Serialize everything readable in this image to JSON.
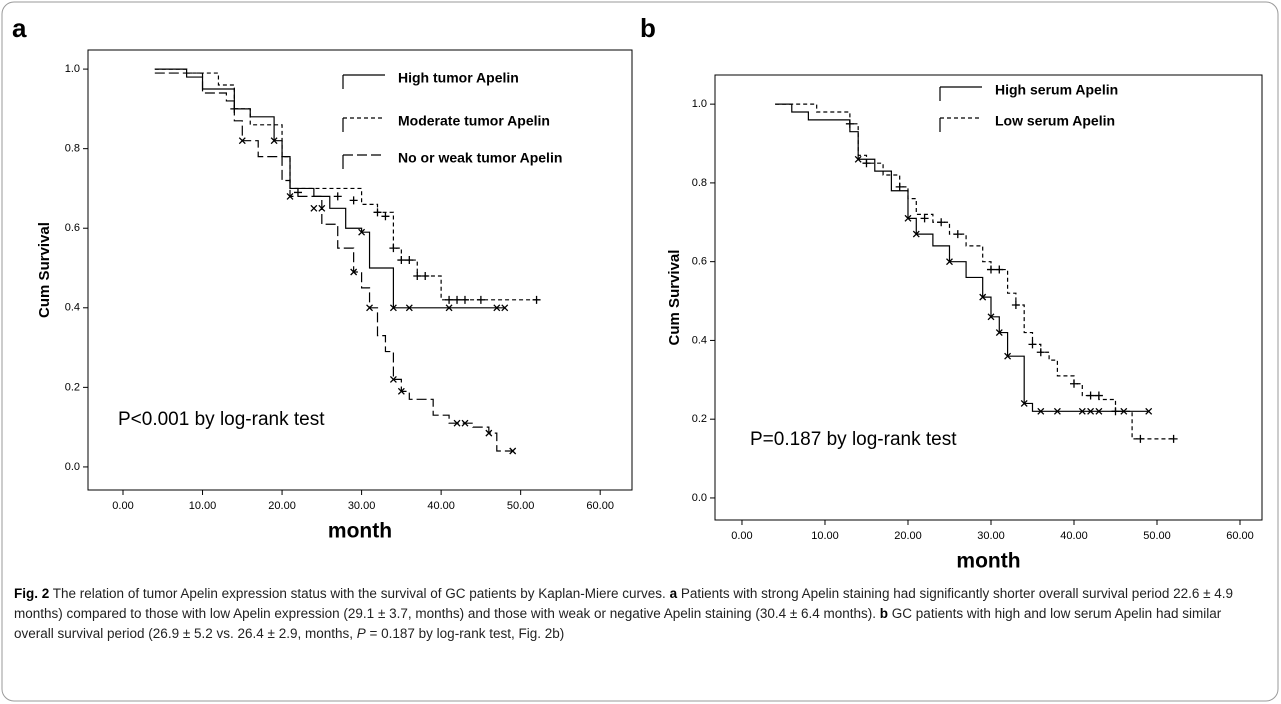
{
  "chart_data": [
    {
      "type": "step",
      "panel_label": "a",
      "ylabel": "Cum Survival",
      "xlabel": "month",
      "annotation": "P<0.001 by log-rank test",
      "xlim": [
        -4.4,
        64
      ],
      "ylim": [
        -0.058,
        1.048
      ],
      "xticks": [
        {
          "value": 0,
          "label": "0.00"
        },
        {
          "value": 10,
          "label": "10.00"
        },
        {
          "value": 20,
          "label": "20.00"
        },
        {
          "value": 30,
          "label": "30.00"
        },
        {
          "value": 40,
          "label": "40.00"
        },
        {
          "value": 50,
          "label": "50.00"
        },
        {
          "value": 60,
          "label": "60.00"
        }
      ],
      "yticks": [
        {
          "value": 0,
          "label": "0.0"
        },
        {
          "value": 0.2,
          "label": "0.2"
        },
        {
          "value": 0.4,
          "label": "0.4"
        },
        {
          "value": 0.6,
          "label": "0.6"
        },
        {
          "value": 0.8,
          "label": "0.8"
        },
        {
          "value": 1,
          "label": "1.0"
        }
      ],
      "series": [
        {
          "name": "High tumor Apelin",
          "color": "#000000",
          "dash": "solid",
          "marker": "x",
          "x": [
            4,
            8,
            10,
            14,
            16,
            19,
            20,
            21,
            24,
            26,
            28,
            30,
            31,
            34,
            48
          ],
          "values": [
            1.0,
            0.98,
            0.95,
            0.9,
            0.88,
            0.82,
            0.78,
            0.7,
            0.68,
            0.65,
            0.6,
            0.59,
            0.5,
            0.4,
            0.4
          ],
          "censor_x": [
            19,
            25,
            30,
            34,
            36,
            41,
            47,
            48
          ],
          "censor_values": [
            0.82,
            0.65,
            0.59,
            0.4,
            0.4,
            0.4,
            0.4,
            0.4
          ]
        },
        {
          "name": "Moderate  tumor Apelin",
          "color": "#000000",
          "dash": "short",
          "marker": "+",
          "x": [
            4,
            8,
            12,
            14,
            16,
            20,
            21,
            30,
            32,
            34,
            35,
            37,
            40,
            52
          ],
          "values": [
            1.0,
            0.99,
            0.96,
            0.9,
            0.86,
            0.78,
            0.7,
            0.66,
            0.64,
            0.55,
            0.52,
            0.48,
            0.42,
            0.42
          ],
          "censor_x": [
            14,
            22,
            27,
            29,
            32,
            33,
            34,
            35,
            36,
            37,
            38,
            41,
            42,
            43,
            45,
            52
          ],
          "censor_values": [
            0.9,
            0.69,
            0.68,
            0.67,
            0.64,
            0.63,
            0.55,
            0.52,
            0.52,
            0.48,
            0.48,
            0.42,
            0.42,
            0.42,
            0.42,
            0.42
          ]
        },
        {
          "name": "No or weak tumor Apelin",
          "color": "#000000",
          "dash": "long",
          "marker": "x",
          "x": [
            4,
            10,
            13,
            14,
            15,
            17,
            20,
            21,
            25,
            27,
            29,
            30,
            31,
            32,
            33,
            34,
            35,
            36,
            39,
            41,
            44,
            46,
            47,
            49
          ],
          "values": [
            0.99,
            0.94,
            0.92,
            0.87,
            0.82,
            0.78,
            0.72,
            0.68,
            0.61,
            0.55,
            0.49,
            0.45,
            0.4,
            0.33,
            0.29,
            0.22,
            0.19,
            0.17,
            0.13,
            0.11,
            0.1,
            0.085,
            0.04,
            0.04
          ],
          "censor_x": [
            15,
            21,
            24,
            29,
            31,
            34,
            35,
            42,
            43,
            46,
            49
          ],
          "censor_values": [
            0.82,
            0.68,
            0.65,
            0.49,
            0.4,
            0.22,
            0.19,
            0.11,
            0.11,
            0.085,
            0.04
          ]
        }
      ]
    },
    {
      "type": "step",
      "panel_label": "b",
      "ylabel": "Cum Survival",
      "xlabel": "month",
      "annotation": "P=0.187 by log-rank test",
      "xlim": [
        -3.25,
        62.65
      ],
      "ylim": [
        -0.056,
        1.074
      ],
      "xticks": [
        {
          "value": 0,
          "label": "0.00"
        },
        {
          "value": 10,
          "label": "10.00"
        },
        {
          "value": 20,
          "label": "20.00"
        },
        {
          "value": 30,
          "label": "30.00"
        },
        {
          "value": 40,
          "label": "40.00"
        },
        {
          "value": 50,
          "label": "50.00"
        },
        {
          "value": 60,
          "label": "60.00"
        }
      ],
      "yticks": [
        {
          "value": 0,
          "label": "0.0"
        },
        {
          "value": 0.2,
          "label": "0.2"
        },
        {
          "value": 0.4,
          "label": "0.4"
        },
        {
          "value": 0.6,
          "label": "0.6"
        },
        {
          "value": 0.8,
          "label": "0.8"
        },
        {
          "value": 1,
          "label": "1.0"
        }
      ],
      "series": [
        {
          "name": "High serum Apelin",
          "color": "#000000",
          "dash": "solid",
          "marker": "x",
          "x": [
            4,
            6,
            8,
            13,
            14,
            16,
            18,
            20,
            21,
            23,
            25,
            27,
            29,
            30,
            31,
            32,
            34,
            35,
            49
          ],
          "values": [
            1.0,
            0.98,
            0.96,
            0.93,
            0.86,
            0.83,
            0.78,
            0.71,
            0.67,
            0.64,
            0.6,
            0.56,
            0.51,
            0.46,
            0.42,
            0.36,
            0.24,
            0.22,
            0.22
          ],
          "censor_x": [
            14,
            20,
            21,
            25,
            29,
            30,
            31,
            32,
            34,
            36,
            38,
            41,
            42,
            43,
            46,
            49
          ],
          "censor_values": [
            0.86,
            0.71,
            0.67,
            0.6,
            0.51,
            0.46,
            0.42,
            0.36,
            0.24,
            0.22,
            0.22,
            0.22,
            0.22,
            0.22,
            0.22,
            0.22
          ]
        },
        {
          "name": "Low serum Apelin",
          "color": "#000000",
          "dash": "short",
          "marker": "+",
          "x": [
            4,
            9,
            13,
            14,
            15,
            17,
            19,
            20,
            21,
            23,
            25,
            27,
            29,
            30,
            32,
            33,
            34,
            35,
            36,
            37,
            38,
            40,
            41,
            43,
            45,
            47,
            52
          ],
          "values": [
            1.0,
            0.98,
            0.95,
            0.87,
            0.85,
            0.82,
            0.79,
            0.76,
            0.72,
            0.7,
            0.67,
            0.64,
            0.6,
            0.58,
            0.52,
            0.49,
            0.42,
            0.39,
            0.37,
            0.35,
            0.31,
            0.29,
            0.26,
            0.25,
            0.22,
            0.15,
            0.15
          ],
          "censor_x": [
            13,
            15,
            19,
            22,
            24,
            26,
            30,
            31,
            33,
            35,
            36,
            40,
            42,
            43,
            45,
            48,
            52
          ],
          "censor_values": [
            0.95,
            0.85,
            0.79,
            0.71,
            0.7,
            0.67,
            0.58,
            0.58,
            0.49,
            0.39,
            0.37,
            0.29,
            0.26,
            0.26,
            0.22,
            0.15,
            0.15
          ]
        }
      ]
    }
  ],
  "caption": [
    {
      "text": "Fig. 2",
      "bold": true
    },
    {
      "text": " The relation of tumor Apelin expression status with the survival of GC patients by Kaplan-Miere curves. "
    },
    {
      "text": "a",
      "bold": true
    },
    {
      "text": " Patients with strong Apelin staining had significantly shorter overall survival period 22.6 ± 4.9 months) compared to those with low Apelin expression (29.1 ± 3.7, months) and those with weak or negative Apelin staining (30.4 ± 6.4 months). "
    },
    {
      "text": "b",
      "bold": true
    },
    {
      "text": " GC patients with high and low serum Apelin had similar overall survival period (26.9 ± 5.2 vs. 26.4 ± 2.9, months, "
    },
    {
      "text": "P",
      "italic": true
    },
    {
      "text": " = 0.187 by log-rank test, Fig. 2b)"
    }
  ]
}
